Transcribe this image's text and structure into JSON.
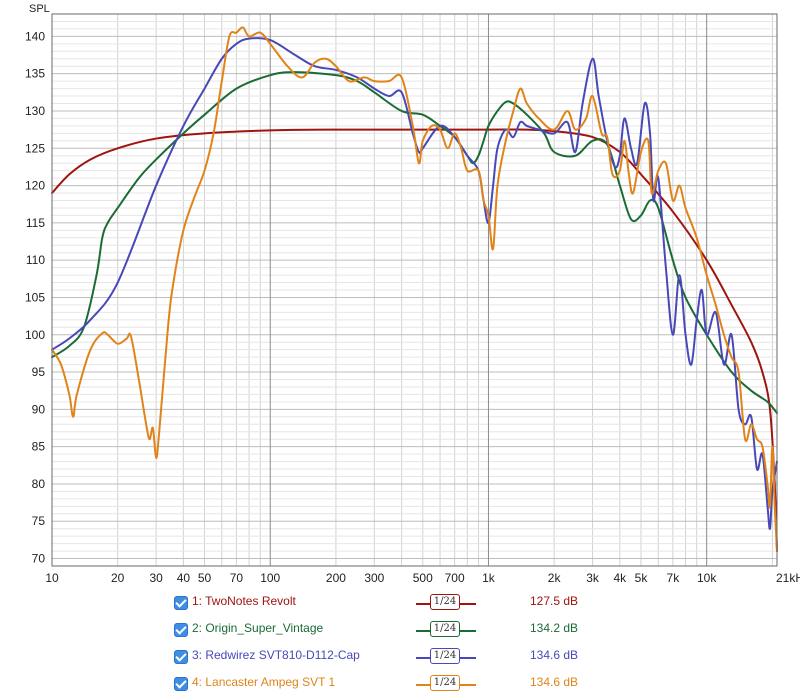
{
  "chart_data": {
    "type": "line",
    "ylabel": "SPL",
    "xscale": "log",
    "xlim": [
      10,
      21000
    ],
    "ylim": [
      69,
      143
    ],
    "grid": true,
    "x_tick_labels": [
      "10",
      "20",
      "30",
      "40",
      "50",
      "70",
      "100",
      "200",
      "300",
      "500",
      "700",
      "1k",
      "2k",
      "3k",
      "4k",
      "5k",
      "7k",
      "10k",
      "21kHz"
    ],
    "y_ticks": [
      70,
      75,
      80,
      85,
      90,
      95,
      100,
      105,
      110,
      115,
      120,
      125,
      130,
      135,
      140
    ],
    "series": [
      {
        "name": "1: TwoNotes Revolt",
        "value_label": "127.5 dB",
        "smoothing": "1/24",
        "color": "#a0140f",
        "points": [
          [
            10,
            119
          ],
          [
            12,
            121.5
          ],
          [
            15,
            123.5
          ],
          [
            20,
            125
          ],
          [
            30,
            126.3
          ],
          [
            50,
            127
          ],
          [
            100,
            127.4
          ],
          [
            200,
            127.5
          ],
          [
            500,
            127.5
          ],
          [
            1000,
            127.5
          ],
          [
            1500,
            127.5
          ],
          [
            2000,
            127.3
          ],
          [
            3000,
            126.5
          ],
          [
            4000,
            124.5
          ],
          [
            5000,
            121.5
          ],
          [
            7000,
            116.5
          ],
          [
            10000,
            110
          ],
          [
            13000,
            104
          ],
          [
            16000,
            99
          ],
          [
            18000,
            95
          ],
          [
            19500,
            90
          ],
          [
            20500,
            80
          ],
          [
            21000,
            71
          ]
        ]
      },
      {
        "name": "2: Origin_Super_Vintage",
        "value_label": "134.2 dB",
        "smoothing": "1/24",
        "color": "#1a6b34",
        "points": [
          [
            10,
            97
          ],
          [
            12,
            98.5
          ],
          [
            14,
            101
          ],
          [
            16,
            108
          ],
          [
            17,
            113
          ],
          [
            18,
            115
          ],
          [
            20,
            117
          ],
          [
            25,
            121
          ],
          [
            30,
            123.5
          ],
          [
            40,
            127
          ],
          [
            50,
            129.5
          ],
          [
            70,
            133
          ],
          [
            100,
            134.8
          ],
          [
            130,
            135.2
          ],
          [
            200,
            134.8
          ],
          [
            250,
            134
          ],
          [
            300,
            132.5
          ],
          [
            400,
            130
          ],
          [
            500,
            129.5
          ],
          [
            600,
            128
          ],
          [
            700,
            126.5
          ],
          [
            800,
            124
          ],
          [
            850,
            123
          ],
          [
            900,
            124
          ],
          [
            950,
            126
          ],
          [
            1000,
            128
          ],
          [
            1100,
            130
          ],
          [
            1200,
            131.2
          ],
          [
            1300,
            131
          ],
          [
            1500,
            129.5
          ],
          [
            1800,
            127
          ],
          [
            2000,
            124.5
          ],
          [
            2500,
            124
          ],
          [
            3000,
            126
          ],
          [
            3500,
            125.5
          ],
          [
            4000,
            120
          ],
          [
            4500,
            115.5
          ],
          [
            5000,
            116
          ],
          [
            5500,
            118
          ],
          [
            6000,
            117
          ],
          [
            7000,
            110
          ],
          [
            8000,
            105
          ],
          [
            10000,
            100
          ],
          [
            13000,
            95
          ],
          [
            16000,
            92.5
          ],
          [
            19000,
            91
          ],
          [
            21000,
            89.5
          ]
        ]
      },
      {
        "name": "3: Redwirez SVT810-D112-Cap",
        "value_label": "134.6 dB",
        "smoothing": "1/24",
        "color": "#4848b8",
        "points": [
          [
            10,
            98
          ],
          [
            12,
            99.5
          ],
          [
            15,
            102
          ],
          [
            20,
            107
          ],
          [
            30,
            120
          ],
          [
            40,
            128
          ],
          [
            50,
            133
          ],
          [
            60,
            137
          ],
          [
            70,
            139
          ],
          [
            80,
            139.7
          ],
          [
            100,
            139.5
          ],
          [
            130,
            137.5
          ],
          [
            160,
            136
          ],
          [
            200,
            135.5
          ],
          [
            250,
            134.5
          ],
          [
            300,
            133
          ],
          [
            350,
            132
          ],
          [
            400,
            132.5
          ],
          [
            450,
            127
          ],
          [
            480,
            124.5
          ],
          [
            500,
            125
          ],
          [
            600,
            128
          ],
          [
            700,
            126.5
          ],
          [
            800,
            124
          ],
          [
            900,
            122
          ],
          [
            950,
            118
          ],
          [
            1000,
            115
          ],
          [
            1050,
            120
          ],
          [
            1100,
            125
          ],
          [
            1200,
            127.5
          ],
          [
            1300,
            126.5
          ],
          [
            1400,
            128.5
          ],
          [
            1500,
            128
          ],
          [
            1700,
            127.5
          ],
          [
            2000,
            127
          ],
          [
            2300,
            128.5
          ],
          [
            2500,
            124.5
          ],
          [
            2700,
            131
          ],
          [
            3000,
            137
          ],
          [
            3200,
            132
          ],
          [
            3500,
            126
          ],
          [
            3800,
            122.5
          ],
          [
            4000,
            124
          ],
          [
            4200,
            129
          ],
          [
            4500,
            125
          ],
          [
            4800,
            123
          ],
          [
            5200,
            131
          ],
          [
            5500,
            127
          ],
          [
            5700,
            118
          ],
          [
            6000,
            121
          ],
          [
            6500,
            109
          ],
          [
            7000,
            100
          ],
          [
            7500,
            108
          ],
          [
            8000,
            100
          ],
          [
            8500,
            96
          ],
          [
            9000,
            102
          ],
          [
            9500,
            106
          ],
          [
            10000,
            100
          ],
          [
            11000,
            103
          ],
          [
            12000,
            96
          ],
          [
            13000,
            100
          ],
          [
            14000,
            90
          ],
          [
            15000,
            88
          ],
          [
            16000,
            89
          ],
          [
            17000,
            82
          ],
          [
            18000,
            84
          ],
          [
            19000,
            77
          ],
          [
            19500,
            74
          ],
          [
            20000,
            79
          ],
          [
            21000,
            83
          ]
        ]
      },
      {
        "name": "4: Lancaster Ampeg SVT 1",
        "value_label": "134.6 dB",
        "smoothing": "1/24",
        "color": "#e0841a",
        "points": [
          [
            10,
            98
          ],
          [
            11,
            96
          ],
          [
            12,
            92
          ],
          [
            12.5,
            89
          ],
          [
            13,
            92
          ],
          [
            15,
            98
          ],
          [
            17,
            100.2
          ],
          [
            18,
            100
          ],
          [
            20,
            98.8
          ],
          [
            22,
            99.5
          ],
          [
            23,
            99.8
          ],
          [
            25,
            94
          ],
          [
            27,
            88
          ],
          [
            28,
            86
          ],
          [
            29,
            87.5
          ],
          [
            30,
            83.5
          ],
          [
            31,
            87
          ],
          [
            34,
            101
          ],
          [
            36,
            107
          ],
          [
            40,
            114
          ],
          [
            45,
            118.5
          ],
          [
            50,
            122
          ],
          [
            55,
            127
          ],
          [
            60,
            134
          ],
          [
            65,
            140
          ],
          [
            70,
            140.5
          ],
          [
            75,
            141.2
          ],
          [
            80,
            140
          ],
          [
            90,
            140.5
          ],
          [
            100,
            139
          ],
          [
            120,
            136
          ],
          [
            140,
            134.5
          ],
          [
            160,
            136.5
          ],
          [
            180,
            137
          ],
          [
            200,
            136
          ],
          [
            230,
            134
          ],
          [
            270,
            134.5
          ],
          [
            300,
            134
          ],
          [
            350,
            134
          ],
          [
            400,
            134.5
          ],
          [
            450,
            128
          ],
          [
            480,
            123
          ],
          [
            500,
            126
          ],
          [
            550,
            128
          ],
          [
            600,
            127.5
          ],
          [
            650,
            125
          ],
          [
            700,
            127
          ],
          [
            750,
            125
          ],
          [
            800,
            122
          ],
          [
            900,
            122
          ],
          [
            950,
            118
          ],
          [
            1000,
            116
          ],
          [
            1050,
            111.5
          ],
          [
            1100,
            120
          ],
          [
            1200,
            126
          ],
          [
            1300,
            130
          ],
          [
            1400,
            133
          ],
          [
            1500,
            131
          ],
          [
            1700,
            129
          ],
          [
            2000,
            127.5
          ],
          [
            2300,
            130
          ],
          [
            2500,
            127.5
          ],
          [
            2800,
            129
          ],
          [
            3000,
            132
          ],
          [
            3300,
            127
          ],
          [
            3500,
            126.5
          ],
          [
            3700,
            121.5
          ],
          [
            4000,
            122
          ],
          [
            4200,
            126
          ],
          [
            4400,
            121.5
          ],
          [
            4600,
            119
          ],
          [
            5000,
            124.5
          ],
          [
            5400,
            126
          ],
          [
            5600,
            119
          ],
          [
            6000,
            122
          ],
          [
            6500,
            123
          ],
          [
            7000,
            118
          ],
          [
            7500,
            120
          ],
          [
            8000,
            117
          ],
          [
            9000,
            113
          ],
          [
            10000,
            108
          ],
          [
            11000,
            104
          ],
          [
            12000,
            100
          ],
          [
            13000,
            97
          ],
          [
            14000,
            95
          ],
          [
            15000,
            86
          ],
          [
            16000,
            88
          ],
          [
            17000,
            86
          ],
          [
            18000,
            85
          ],
          [
            19000,
            80
          ],
          [
            19500,
            77
          ],
          [
            20000,
            85
          ],
          [
            20500,
            77
          ],
          [
            21000,
            71
          ]
        ]
      }
    ]
  }
}
